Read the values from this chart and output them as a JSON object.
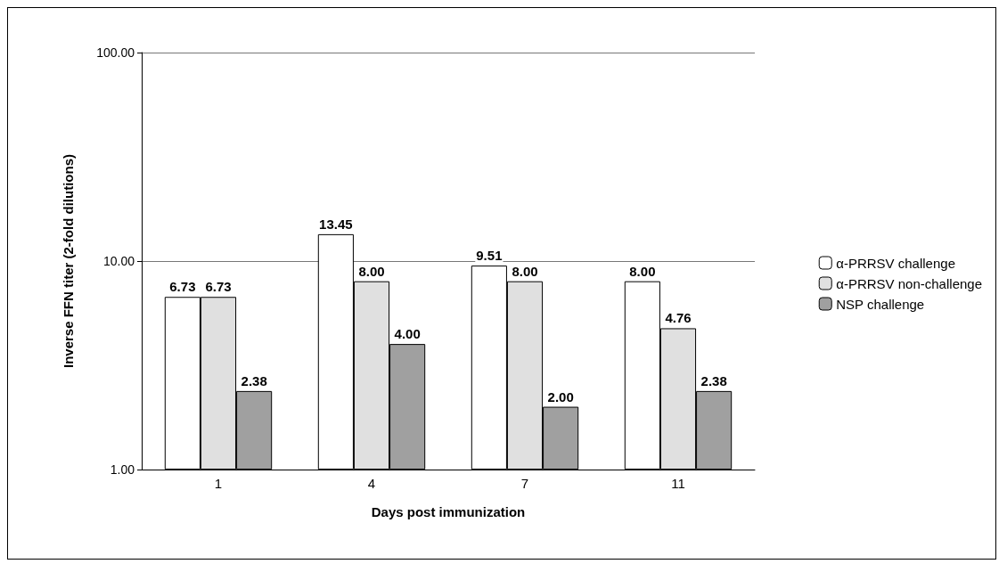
{
  "chart_data": {
    "type": "bar",
    "xlabel": "Days post immunization",
    "ylabel": "Inverse FFN titer (2-fold dilutions)",
    "categories": [
      "1",
      "4",
      "7",
      "11"
    ],
    "series": [
      {
        "name": "α-PRRSV challenge",
        "color": "#ffffff",
        "values": [
          6.73,
          13.45,
          9.51,
          8.0
        ],
        "value_labels": [
          "6.73",
          "13.45",
          "9.51",
          "8.00"
        ]
      },
      {
        "name": "α-PRRSV non-challenge",
        "color": "#e0e0e0",
        "values": [
          6.73,
          8.0,
          8.0,
          4.76
        ],
        "value_labels": [
          "6.73",
          "8.00",
          "8.00",
          "4.76"
        ]
      },
      {
        "name": "NSP challenge",
        "color": "#a0a0a0",
        "values": [
          2.38,
          4.0,
          2.0,
          2.38
        ],
        "value_labels": [
          "2.38",
          "4.00",
          "2.00",
          "2.38"
        ]
      }
    ],
    "log": "y",
    "ylim": [
      1,
      100
    ],
    "yticks": [
      {
        "value": 1,
        "label": "1.00"
      },
      {
        "value": 10,
        "label": "10.00"
      },
      {
        "value": 100,
        "label": "100.00"
      }
    ],
    "grid": "y",
    "legend": "right"
  }
}
